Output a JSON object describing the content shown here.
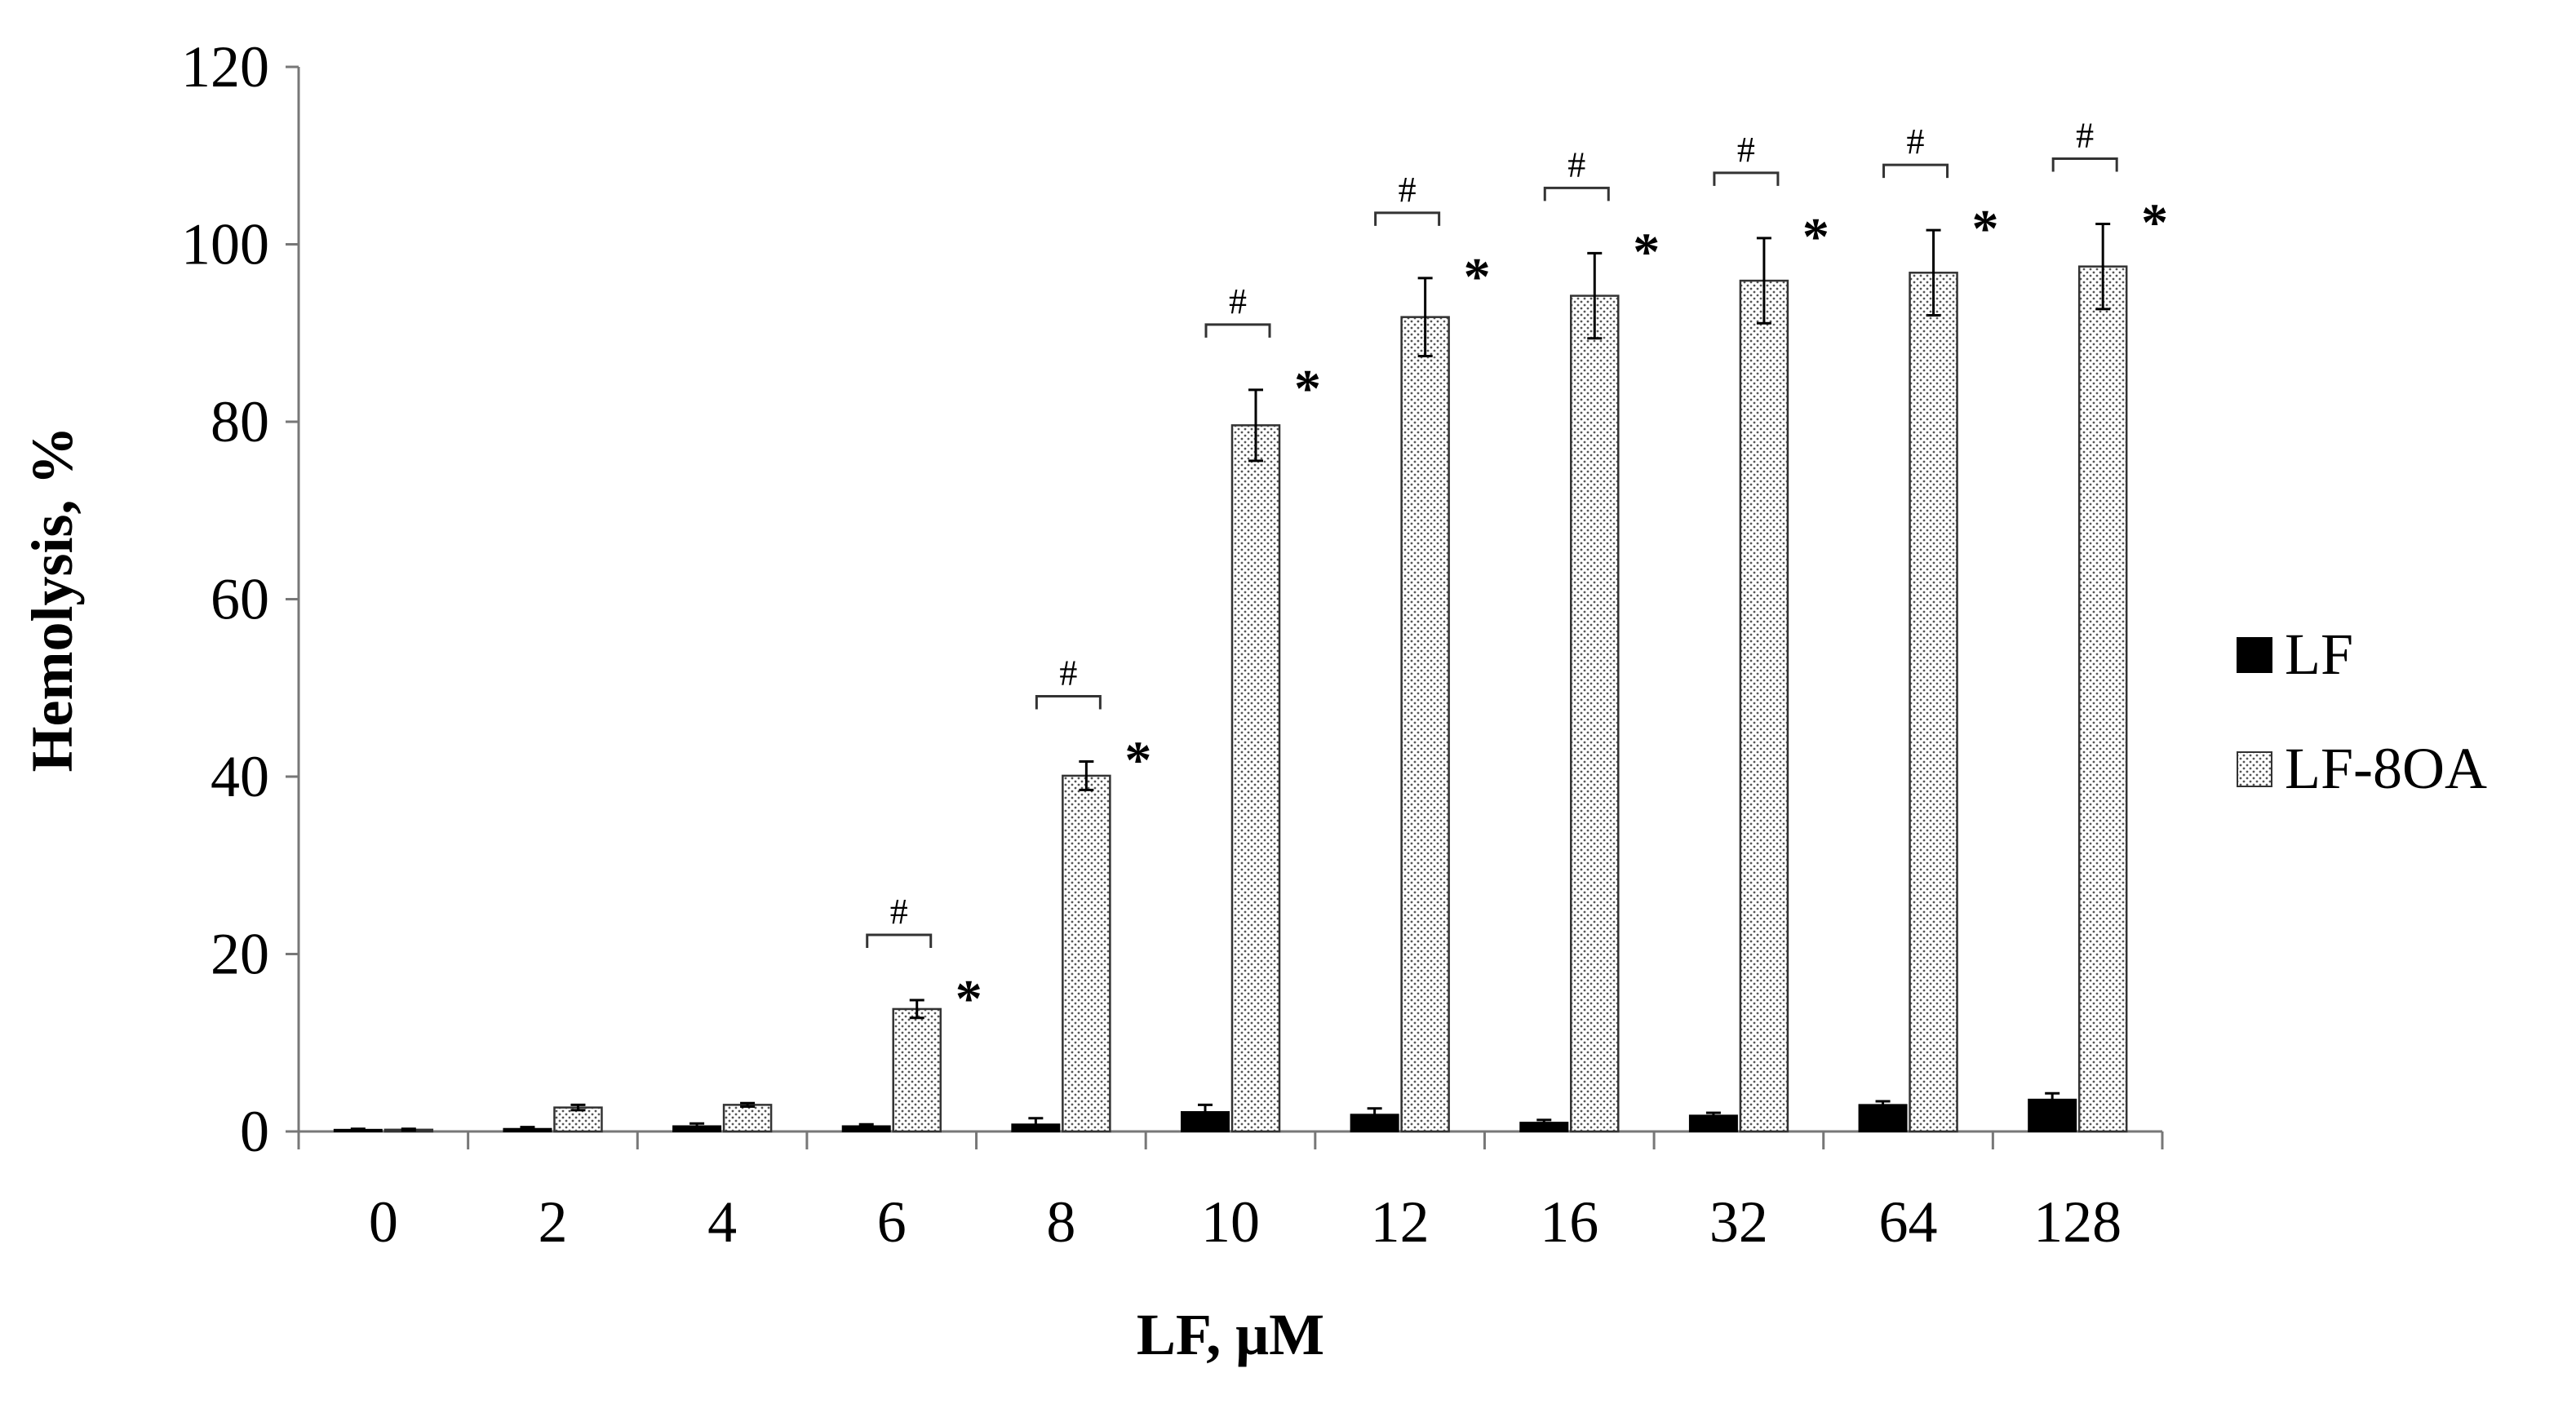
{
  "chart_data": {
    "type": "bar",
    "title": "",
    "xlabel": "LF, μM",
    "ylabel": "Hemolysis, %",
    "ylim": [
      0,
      120
    ],
    "yticks": [
      0,
      20,
      40,
      60,
      80,
      100,
      120
    ],
    "categories": [
      "0",
      "2",
      "4",
      "6",
      "8",
      "10",
      "12",
      "16",
      "32",
      "64",
      "128"
    ],
    "series": [
      {
        "name": "LF",
        "fill": "solid",
        "color": "#000000",
        "values": [
          0.2,
          0.3,
          0.6,
          0.6,
          0.8,
          2.2,
          1.9,
          1.0,
          1.8,
          3.0,
          3.6
        ],
        "errors": [
          0.1,
          0.2,
          0.3,
          0.2,
          0.7,
          0.8,
          0.7,
          0.3,
          0.3,
          0.4,
          0.7
        ]
      },
      {
        "name": "LF-8OA",
        "fill": "dotted",
        "color": "#e6e6e6",
        "values": [
          0.2,
          2.7,
          3.0,
          13.8,
          40.1,
          79.6,
          91.8,
          94.2,
          95.9,
          96.8,
          97.5
        ],
        "errors": [
          0.1,
          0.3,
          0.2,
          1.0,
          1.6,
          4.0,
          4.4,
          4.8,
          4.8,
          4.8,
          4.8
        ]
      }
    ],
    "annotations": {
      "hash_symbol": "#",
      "star_symbol": "*",
      "marked_categories": [
        "6",
        "8",
        "10",
        "12",
        "16",
        "32",
        "64",
        "128"
      ]
    },
    "legend_position": "right",
    "grid": false
  }
}
